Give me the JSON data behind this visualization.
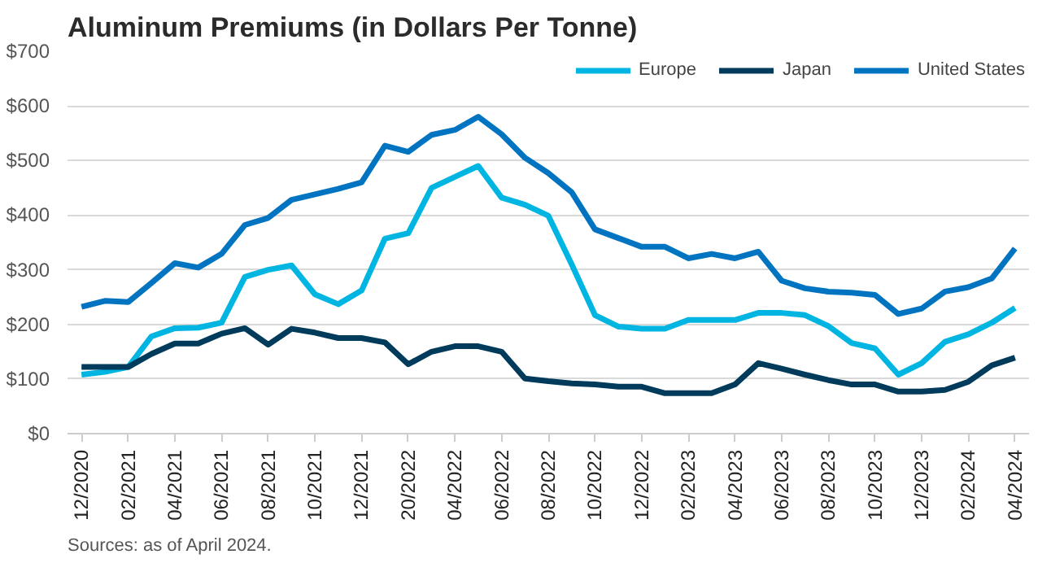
{
  "chart_data": {
    "type": "line",
    "title": "Aluminum Premiums (in Dollars Per Tonne)",
    "categories": [
      "12/2020",
      null,
      "02/2021",
      null,
      "04/2021",
      null,
      "06/2021",
      null,
      "08/2021",
      null,
      "10/2021",
      null,
      "12/2021",
      null,
      "20/2022",
      null,
      "04/2022",
      null,
      "06/2022",
      null,
      "08/2022",
      null,
      "10/2022",
      null,
      "12/2022",
      null,
      "02/2023",
      null,
      "04/2023",
      null,
      "06/2023",
      null,
      "08/2023",
      null,
      "10/2023",
      null,
      "12/2023",
      null,
      "02/2024",
      null,
      "04/2024"
    ],
    "series": [
      {
        "name": "Europe",
        "color": "#00b5e2",
        "values": [
          108,
          113,
          122,
          178,
          193,
          194,
          203,
          287,
          300,
          308,
          255,
          237,
          262,
          357,
          367,
          450,
          470,
          490,
          432,
          419,
          399,
          310,
          217,
          196,
          192,
          192,
          208,
          208,
          208,
          221,
          221,
          217,
          197,
          166,
          156,
          108,
          129,
          168,
          182,
          203,
          230
        ]
      },
      {
        "name": "Japan",
        "color": "#003b5c",
        "values": [
          122,
          122,
          122,
          146,
          165,
          165,
          183,
          193,
          163,
          192,
          185,
          175,
          175,
          167,
          127,
          150,
          160,
          160,
          150,
          101,
          96,
          92,
          90,
          86,
          86,
          74,
          74,
          74,
          90,
          129,
          119,
          108,
          98,
          90,
          90,
          77,
          77,
          80,
          95,
          125,
          139
        ]
      },
      {
        "name": "United States",
        "color": "#0074c1",
        "values": [
          232,
          243,
          241,
          276,
          312,
          304,
          329,
          382,
          395,
          428,
          438,
          448,
          460,
          527,
          516,
          547,
          556,
          580,
          548,
          505,
          477,
          442,
          374,
          358,
          342,
          342,
          321,
          329,
          321,
          333,
          280,
          266,
          260,
          258,
          254,
          219,
          229,
          260,
          268,
          284,
          339
        ]
      }
    ],
    "ylim": [
      0,
      700
    ],
    "yticks": [
      {
        "value": 0,
        "label": "$0"
      },
      {
        "value": 100,
        "label": "$100"
      },
      {
        "value": 200,
        "label": "$200"
      },
      {
        "value": 300,
        "label": "$300"
      },
      {
        "value": 400,
        "label": "$400"
      },
      {
        "value": 500,
        "label": "$500"
      },
      {
        "value": 600,
        "label": "$600"
      },
      {
        "value": 700,
        "label": "$700"
      }
    ],
    "grid": "y",
    "legend": "top right",
    "marker": "none",
    "line_style": "solid",
    "annotations": [
      "Sources: as of April 2024."
    ]
  }
}
